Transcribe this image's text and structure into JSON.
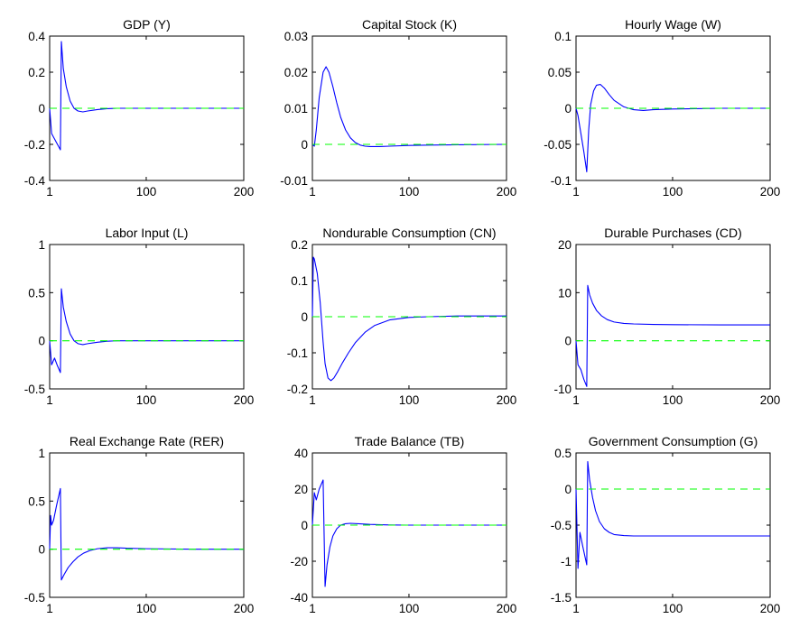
{
  "colors": {
    "response": "#0000ff",
    "baseline": "#00ff00",
    "axis": "#000000",
    "background": "#ffffff"
  },
  "chart_data": [
    {
      "type": "line",
      "title": "GDP (Y)",
      "xlim": [
        1,
        200
      ],
      "ylim": [
        -0.4,
        0.4
      ],
      "xticks": [
        "1",
        "100",
        "200"
      ],
      "yticks": [
        "-0.4",
        "-0.2",
        "0",
        "0.2",
        "0.4"
      ],
      "grid": false,
      "series": [
        {
          "role": "response",
          "x": [
            1,
            3,
            6,
            9,
            12,
            13,
            15,
            18,
            22,
            26,
            30,
            35,
            40,
            50,
            60,
            70,
            80,
            100,
            150,
            200
          ],
          "y": [
            0,
            -0.14,
            -0.17,
            -0.2,
            -0.23,
            0.37,
            0.22,
            0.12,
            0.04,
            0.0,
            -0.015,
            -0.02,
            -0.015,
            -0.007,
            -0.002,
            0.0,
            0.0,
            0.0,
            0.0,
            0.0
          ]
        },
        {
          "role": "baseline",
          "x": [
            1,
            200
          ],
          "y": [
            0,
            0
          ]
        }
      ]
    },
    {
      "type": "line",
      "title": "Capital Stock (K)",
      "xlim": [
        1,
        200
      ],
      "ylim": [
        -0.01,
        0.03
      ],
      "xticks": [
        "1",
        "100",
        "200"
      ],
      "yticks": [
        "-0.01",
        "0",
        "0.01",
        "0.02",
        "0.03"
      ],
      "grid": false,
      "series": [
        {
          "role": "response",
          "x": [
            1,
            3,
            5,
            8,
            12,
            15,
            18,
            22,
            26,
            30,
            35,
            40,
            45,
            50,
            55,
            60,
            70,
            80,
            100,
            120,
            150,
            200
          ],
          "y": [
            0,
            -0.0005,
            0.004,
            0.013,
            0.02,
            0.0215,
            0.02,
            0.016,
            0.0115,
            0.0075,
            0.004,
            0.0018,
            0.0005,
            -0.0002,
            -0.0005,
            -0.0006,
            -0.0006,
            -0.0005,
            -0.0003,
            -0.0002,
            -0.0001,
            0.0
          ]
        },
        {
          "role": "baseline",
          "x": [
            1,
            200
          ],
          "y": [
            0,
            0
          ]
        }
      ]
    },
    {
      "type": "line",
      "title": "Hourly Wage (W)",
      "xlim": [
        1,
        200
      ],
      "ylim": [
        -0.1,
        0.1
      ],
      "xticks": [
        "1",
        "100",
        "200"
      ],
      "yticks": [
        "-0.1",
        "-0.05",
        "0",
        "0.05",
        "0.1"
      ],
      "grid": false,
      "series": [
        {
          "role": "response",
          "x": [
            1,
            3,
            6,
            9,
            12,
            14,
            16,
            19,
            22,
            26,
            30,
            35,
            40,
            50,
            60,
            70,
            80,
            100,
            150,
            200
          ],
          "y": [
            0,
            -0.01,
            -0.035,
            -0.06,
            -0.088,
            -0.03,
            0.005,
            0.024,
            0.032,
            0.033,
            0.028,
            0.019,
            0.011,
            0.002,
            -0.002,
            -0.003,
            -0.002,
            -0.001,
            0.0,
            0.0
          ]
        },
        {
          "role": "baseline",
          "x": [
            1,
            200
          ],
          "y": [
            0,
            0
          ]
        }
      ]
    },
    {
      "type": "line",
      "title": "Labor Input (L)",
      "xlim": [
        1,
        200
      ],
      "ylim": [
        -0.5,
        1
      ],
      "xticks": [
        "1",
        "100",
        "200"
      ],
      "yticks": [
        "-0.5",
        "0",
        "0.5",
        "1"
      ],
      "grid": false,
      "series": [
        {
          "role": "response",
          "x": [
            1,
            3,
            6,
            9,
            12,
            13,
            15,
            18,
            22,
            26,
            30,
            35,
            40,
            50,
            60,
            70,
            80,
            100,
            150,
            200
          ],
          "y": [
            0,
            -0.25,
            -0.18,
            -0.26,
            -0.33,
            0.54,
            0.35,
            0.2,
            0.07,
            0.0,
            -0.03,
            -0.04,
            -0.03,
            -0.015,
            -0.005,
            0.0,
            0.0,
            0.0,
            0.0,
            0.0
          ]
        },
        {
          "role": "baseline",
          "x": [
            1,
            200
          ],
          "y": [
            0,
            0
          ]
        }
      ]
    },
    {
      "type": "line",
      "title": "Nondurable Consumption (CN)",
      "xlim": [
        1,
        200
      ],
      "ylim": [
        -0.2,
        0.2
      ],
      "xticks": [
        "1",
        "100",
        "200"
      ],
      "yticks": [
        "-0.2",
        "-0.1",
        "0",
        "0.1",
        "0.2"
      ],
      "grid": false,
      "series": [
        {
          "role": "response",
          "x": [
            1,
            2,
            3,
            6,
            9,
            12,
            14,
            17,
            20,
            23,
            27,
            32,
            38,
            45,
            55,
            65,
            80,
            100,
            120,
            150,
            200
          ],
          "y": [
            0,
            0.165,
            0.16,
            0.12,
            0.04,
            -0.07,
            -0.13,
            -0.17,
            -0.177,
            -0.17,
            -0.152,
            -0.127,
            -0.1,
            -0.072,
            -0.043,
            -0.024,
            -0.009,
            -0.002,
            0.0,
            0.002,
            0.002
          ]
        },
        {
          "role": "baseline",
          "x": [
            1,
            200
          ],
          "y": [
            0,
            0
          ]
        }
      ]
    },
    {
      "type": "line",
      "title": "Durable Purchases (CD)",
      "xlim": [
        1,
        200
      ],
      "ylim": [
        -10,
        20
      ],
      "xticks": [
        "1",
        "100",
        "200"
      ],
      "yticks": [
        "-10",
        "0",
        "10",
        "20"
      ],
      "grid": false,
      "series": [
        {
          "role": "response",
          "x": [
            1,
            3,
            6,
            9,
            12,
            13,
            15,
            18,
            22,
            27,
            33,
            40,
            50,
            60,
            80,
            100,
            150,
            200
          ],
          "y": [
            0,
            -5,
            -6,
            -8,
            -9.5,
            11.5,
            9.5,
            7.8,
            6.3,
            5.2,
            4.4,
            3.9,
            3.6,
            3.5,
            3.4,
            3.35,
            3.3,
            3.3
          ]
        },
        {
          "role": "baseline",
          "x": [
            1,
            200
          ],
          "y": [
            0,
            0
          ]
        }
      ]
    },
    {
      "type": "line",
      "title": "Real Exchange Rate (RER)",
      "xlim": [
        1,
        200
      ],
      "ylim": [
        -0.5,
        1
      ],
      "xticks": [
        "1",
        "100",
        "200"
      ],
      "yticks": [
        "-0.5",
        "0",
        "0.5",
        "1"
      ],
      "grid": false,
      "series": [
        {
          "role": "response",
          "x": [
            1,
            2,
            3,
            5,
            8,
            12,
            13,
            16,
            20,
            25,
            30,
            36,
            42,
            50,
            60,
            70,
            80,
            100,
            150,
            200
          ],
          "y": [
            0,
            0.35,
            0.25,
            0.3,
            0.45,
            0.63,
            -0.32,
            -0.26,
            -0.19,
            -0.13,
            -0.08,
            -0.04,
            -0.015,
            0.005,
            0.015,
            0.015,
            0.01,
            0.005,
            0.0,
            0.0
          ]
        },
        {
          "role": "baseline",
          "x": [
            1,
            200
          ],
          "y": [
            0,
            0
          ]
        }
      ]
    },
    {
      "type": "line",
      "title": "Trade Balance (TB)",
      "xlim": [
        1,
        200
      ],
      "ylim": [
        -40,
        40
      ],
      "xticks": [
        "1",
        "100",
        "200"
      ],
      "yticks": [
        "-40",
        "-20",
        "0",
        "20",
        "40"
      ],
      "grid": false,
      "series": [
        {
          "role": "response",
          "x": [
            1,
            3,
            5,
            8,
            12,
            14,
            16,
            19,
            22,
            26,
            30,
            35,
            40,
            50,
            60,
            80,
            100,
            150,
            200
          ],
          "y": [
            0,
            18,
            14,
            20,
            25,
            -34,
            -22,
            -12,
            -6,
            -2,
            0,
            0.8,
            1,
            0.7,
            0.4,
            0.1,
            0,
            0,
            0
          ]
        },
        {
          "role": "baseline",
          "x": [
            1,
            200
          ],
          "y": [
            0,
            0
          ]
        }
      ]
    },
    {
      "type": "line",
      "title": "Government Consumption (G)",
      "xlim": [
        1,
        200
      ],
      "ylim": [
        -1.5,
        0.5
      ],
      "xticks": [
        "1",
        "100",
        "200"
      ],
      "yticks": [
        "-1.5",
        "-1",
        "-0.5",
        "0",
        "0.5"
      ],
      "grid": false,
      "series": [
        {
          "role": "response",
          "x": [
            1,
            3,
            5,
            8,
            12,
            13,
            15,
            18,
            21,
            25,
            30,
            35,
            40,
            50,
            60,
            80,
            100,
            150,
            200
          ],
          "y": [
            0,
            -1.1,
            -0.6,
            -0.8,
            -1.05,
            0.38,
            0.12,
            -0.12,
            -0.3,
            -0.45,
            -0.55,
            -0.6,
            -0.63,
            -0.645,
            -0.65,
            -0.65,
            -0.65,
            -0.65,
            -0.65
          ]
        },
        {
          "role": "baseline",
          "x": [
            1,
            200
          ],
          "y": [
            0,
            0
          ]
        }
      ]
    }
  ]
}
